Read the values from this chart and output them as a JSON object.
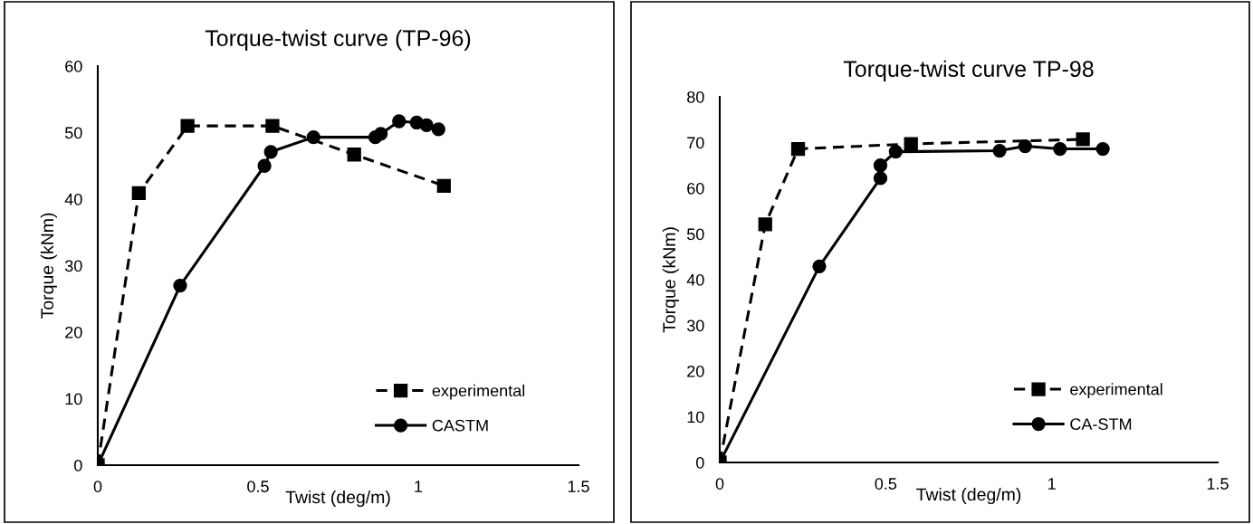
{
  "chart_data": [
    {
      "type": "line",
      "title": "Torque-twist curve (TP-96)",
      "xlabel": "Twist (deg/m)",
      "ylabel": "Torque (kNm)",
      "xlim": [
        0,
        1.5
      ],
      "xticks": [
        0,
        0.5,
        1,
        1.5
      ],
      "ylim": [
        0,
        60
      ],
      "yticks": [
        0,
        10,
        20,
        30,
        40,
        50,
        60
      ],
      "grid": false,
      "legend": "bottom right",
      "series": [
        {
          "name": "experimental",
          "color": "#000000",
          "marker": "square",
          "line_style": "dashed",
          "x": [
            0,
            0.128,
            0.28,
            0.545,
            0.8,
            1.08
          ],
          "values": [
            0,
            40.9,
            51.0,
            51.0,
            46.7,
            42.0
          ]
        },
        {
          "name": "CASTM",
          "color": "#000000",
          "marker": "circle",
          "line_style": "solid",
          "x": [
            0,
            0.257,
            0.52,
            0.54,
            0.673,
            0.866,
            0.883,
            0.94,
            0.995,
            1.026,
            1.063
          ],
          "values": [
            0,
            27.0,
            45.0,
            47.1,
            49.3,
            49.3,
            49.8,
            51.7,
            51.5,
            51.1,
            50.5
          ]
        }
      ]
    },
    {
      "type": "line",
      "title": "Torque-twist curve TP-98",
      "xlabel": "Twist (deg/m)",
      "ylabel": "Torque (kNm)",
      "xlim": [
        0,
        1.5
      ],
      "xticks": [
        0,
        0.5,
        1,
        1.5
      ],
      "ylim": [
        0,
        80
      ],
      "yticks": [
        0,
        10,
        20,
        30,
        40,
        50,
        60,
        70,
        80
      ],
      "grid": false,
      "legend": "bottom right",
      "series": [
        {
          "name": "experimental",
          "color": "#000000",
          "marker": "square",
          "line_style": "dashed",
          "x": [
            0,
            0.137,
            0.236,
            0.576,
            1.094
          ],
          "values": [
            0,
            52.1,
            68.6,
            69.7,
            70.7
          ]
        },
        {
          "name": "CA-STM",
          "color": "#000000",
          "marker": "circle",
          "line_style": "solid",
          "x": [
            0,
            0.3,
            0.484,
            0.484,
            0.53,
            0.843,
            0.92,
            1.025,
            1.154
          ],
          "values": [
            0,
            42.9,
            62.2,
            65.0,
            68.0,
            68.2,
            69.2,
            68.6,
            68.6
          ]
        }
      ]
    }
  ]
}
